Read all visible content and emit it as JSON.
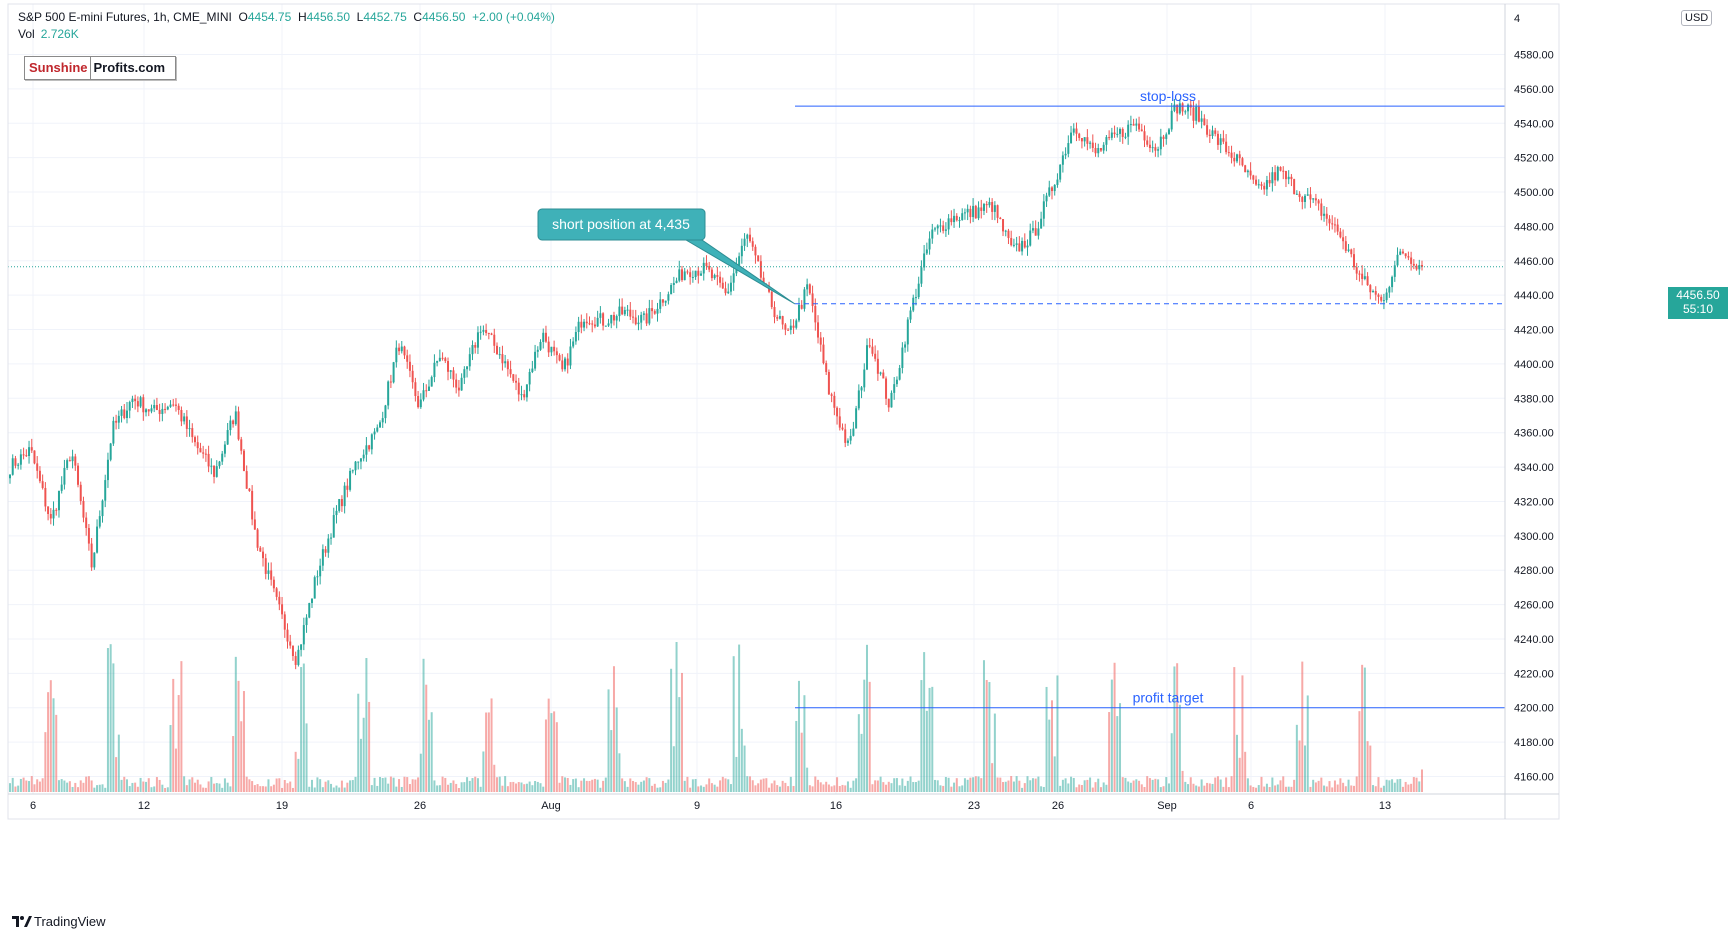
{
  "header": {
    "symbol": "S&P 500 E-mini Futures, 1h, CME_MINI",
    "open_label": "O",
    "open": "4454.75",
    "high_label": "H",
    "high": "4456.50",
    "low_label": "L",
    "low": "4452.75",
    "close_label": "C",
    "close": "4456.50",
    "change": "+2.00 (+0.04%)",
    "vol_label": "Vol",
    "vol": "2.726K"
  },
  "logo": {
    "part1": "Sunshine",
    "part2": "Profits.com"
  },
  "currency": "USD",
  "last_price": {
    "value": "4456.50",
    "countdown": "55:10"
  },
  "branding": {
    "icon": "tradingview-logo-icon",
    "text": "TradingView"
  },
  "colors": {
    "up": "#26a69a",
    "down": "#ef5350",
    "lines": "#2962ff",
    "callout": "#3fb1b8"
  },
  "chart_data": {
    "type": "candlestick",
    "title": "S&P 500 E-mini Futures, 1h, CME_MINI",
    "y_axis": {
      "ticks": [
        4160,
        4180,
        4200,
        4220,
        4240,
        4260,
        4280,
        4300,
        4320,
        4340,
        4360,
        4380,
        4400,
        4420,
        4440,
        4460,
        4480,
        4500,
        4520,
        4540,
        4560,
        4580
      ],
      "range": [
        4150,
        4590
      ],
      "partial_top_label": "4"
    },
    "x_axis": {
      "labels": [
        "6",
        "12",
        "19",
        "26",
        "Aug",
        "9",
        "16",
        "23",
        "26",
        "Sep",
        "6",
        "13"
      ]
    },
    "price_path": [
      {
        "x": "6",
        "y": 4340
      },
      {
        "x": "6+",
        "y": 4350
      },
      {
        "x": "6++",
        "y": 4308
      },
      {
        "x": "9",
        "y": 4350
      },
      {
        "x": "9+",
        "y": 4282
      },
      {
        "x": "12",
        "y": 4362
      },
      {
        "x": "12+",
        "y": 4380
      },
      {
        "x": "14",
        "y": 4372
      },
      {
        "x": "15",
        "y": 4378
      },
      {
        "x": "16",
        "y": 4354
      },
      {
        "x": "16+",
        "y": 4336
      },
      {
        "x": "16++",
        "y": 4372
      },
      {
        "x": "19",
        "y": 4300
      },
      {
        "x": "19+",
        "y": 4262
      },
      {
        "x": "19++",
        "y": 4228
      },
      {
        "x": "20",
        "y": 4278
      },
      {
        "x": "21",
        "y": 4315
      },
      {
        "x": "22",
        "y": 4345
      },
      {
        "x": "23",
        "y": 4362
      },
      {
        "x": "26",
        "y": 4412
      },
      {
        "x": "27",
        "y": 4375
      },
      {
        "x": "28",
        "y": 4405
      },
      {
        "x": "29",
        "y": 4385
      },
      {
        "x": "30",
        "y": 4422
      },
      {
        "x": "Aug",
        "y": 4405
      },
      {
        "x": "Aug 2",
        "y": 4380
      },
      {
        "x": "Aug 3",
        "y": 4418
      },
      {
        "x": "Aug 4",
        "y": 4395
      },
      {
        "x": "Aug 5",
        "y": 4428
      },
      {
        "x": "9",
        "y": 4425
      },
      {
        "x": "10",
        "y": 4430
      },
      {
        "x": "11",
        "y": 4425
      },
      {
        "x": "12",
        "y": 4440
      },
      {
        "x": "13",
        "y": 4455
      },
      {
        "x": "16",
        "y": 4455
      },
      {
        "x": "16+",
        "y": 4440
      },
      {
        "x": "17",
        "y": 4475
      },
      {
        "x": "17+",
        "y": 4440
      },
      {
        "x": "18",
        "y": 4415
      },
      {
        "x": "18+",
        "y": 4445
      },
      {
        "x": "19",
        "y": 4385
      },
      {
        "x": "19+",
        "y": 4350
      },
      {
        "x": "20",
        "y": 4415
      },
      {
        "x": "20+",
        "y": 4375
      },
      {
        "x": "20++",
        "y": 4430
      },
      {
        "x": "23",
        "y": 4475
      },
      {
        "x": "24",
        "y": 4485
      },
      {
        "x": "25",
        "y": 4488
      },
      {
        "x": "26",
        "y": 4492
      },
      {
        "x": "26+",
        "y": 4465
      },
      {
        "x": "27",
        "y": 4475
      },
      {
        "x": "27+",
        "y": 4505
      },
      {
        "x": "30",
        "y": 4540
      },
      {
        "x": "31",
        "y": 4522
      },
      {
        "x": "Sep",
        "y": 4532
      },
      {
        "x": "Sep 2",
        "y": 4540
      },
      {
        "x": "Sep 3",
        "y": 4525
      },
      {
        "x": "Sep 3+",
        "y": 4550
      },
      {
        "x": "6",
        "y": 4545
      },
      {
        "x": "7",
        "y": 4530
      },
      {
        "x": "8",
        "y": 4518
      },
      {
        "x": "9",
        "y": 4500
      },
      {
        "x": "9+",
        "y": 4512
      },
      {
        "x": "10",
        "y": 4500
      },
      {
        "x": "10+",
        "y": 4490
      },
      {
        "x": "10++",
        "y": 4475
      },
      {
        "x": "13",
        "y": 4450
      },
      {
        "x": "13+",
        "y": 4436
      },
      {
        "x": "14",
        "y": 4466
      },
      {
        "x": "14+",
        "y": 4456.5
      }
    ],
    "annotations": [
      {
        "type": "horizontal_line",
        "label": "stop-loss",
        "y": 4550
      },
      {
        "type": "horizontal_dashed_line",
        "y": 4435
      },
      {
        "type": "horizontal_line",
        "label": "profit target",
        "y": 4200
      },
      {
        "type": "callout",
        "text": "short position at 4,435"
      }
    ],
    "volume_series": "Vol"
  }
}
